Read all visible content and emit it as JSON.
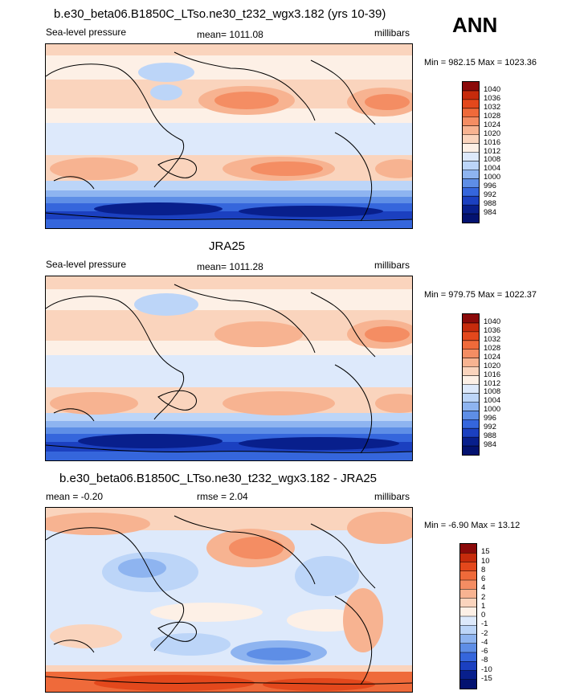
{
  "header": {
    "big_label": "ANN"
  },
  "panel1": {
    "title": "b.e30_beta06.B1850C_LTso.ne30_t232_wgx3.182 (yrs 10-39)",
    "left": "Sea-level pressure",
    "center": "mean= 1011.08",
    "right": "millibars",
    "minmax": "Min = 982.15 Max = 1023.36",
    "levels": [
      "1040",
      "1036",
      "1032",
      "1028",
      "1024",
      "1020",
      "1016",
      "1012",
      "1008",
      "1004",
      "1000",
      "996",
      "992",
      "988",
      "984"
    ]
  },
  "panel2": {
    "title": "JRA25",
    "left": "Sea-level pressure",
    "center": "mean= 1011.28",
    "right": "millibars",
    "minmax": "Min = 979.75 Max = 1022.37",
    "levels": [
      "1040",
      "1036",
      "1032",
      "1028",
      "1024",
      "1020",
      "1016",
      "1012",
      "1008",
      "1004",
      "1000",
      "996",
      "992",
      "988",
      "984"
    ]
  },
  "panel3": {
    "title": "b.e30_beta06.B1850C_LTso.ne30_t232_wgx3.182 - JRA25",
    "left": "mean =  -0.20",
    "center": "rmse =   2.04",
    "right": "millibars",
    "minmax": "Min =  -6.90 Max =  13.12",
    "levels": [
      "15",
      "10",
      "8",
      "6",
      "4",
      "2",
      "1",
      "0",
      "-1",
      "-2",
      "-4",
      "-6",
      "-8",
      "-10",
      "-15"
    ]
  },
  "colors": {
    "abs_scale": [
      "#8b0a0a",
      "#c62b0c",
      "#e3481c",
      "#ef6a3a",
      "#f48d63",
      "#f7b391",
      "#fad4bd",
      "#fdf0e6",
      "#dde9fb",
      "#bcd5f8",
      "#8eb4f0",
      "#5e8ee6",
      "#3566dc",
      "#1b40c0",
      "#081f8c",
      "#031270"
    ],
    "diff_scale": [
      "#8b0a0a",
      "#c62b0c",
      "#e3481c",
      "#ef6a3a",
      "#f48d63",
      "#f7b391",
      "#fad4bd",
      "#fdf0e6",
      "#dde9fb",
      "#bcd5f8",
      "#8eb4f0",
      "#5e8ee6",
      "#3566dc",
      "#1b40c0",
      "#081f8c",
      "#031270"
    ]
  }
}
